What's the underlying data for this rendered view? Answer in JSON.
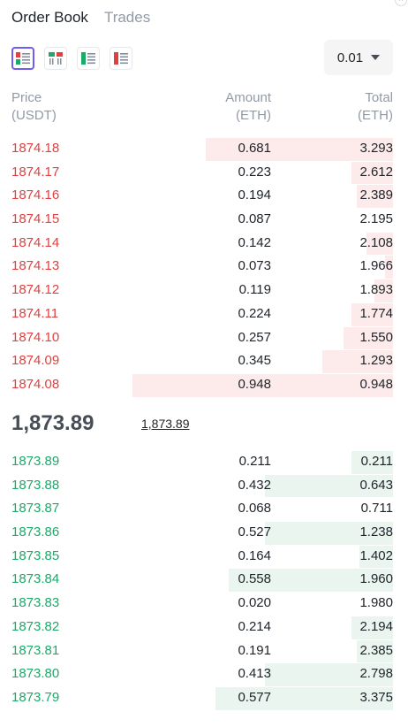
{
  "tabs": {
    "order_book": "Order Book",
    "trades": "Trades"
  },
  "precision": {
    "value": "0.01"
  },
  "headers": {
    "price": "Price",
    "price_unit": "(USDT)",
    "amount": "Amount",
    "amount_unit": "(ETH)",
    "total": "Total",
    "total_unit": "(ETH)"
  },
  "colors": {
    "ask": "#e0403f",
    "bid": "#1da968",
    "ask_depth": "#fdebeb",
    "bid_depth": "#ebf5ef",
    "accent": "#6f5cf0"
  },
  "asks": [
    {
      "price": "1874.18",
      "amount": "0.681",
      "total": "3.293",
      "depth": 0.72
    },
    {
      "price": "1874.17",
      "amount": "0.223",
      "total": "2.612",
      "depth": 0.16
    },
    {
      "price": "1874.16",
      "amount": "0.194",
      "total": "2.389",
      "depth": 0.14
    },
    {
      "price": "1874.15",
      "amount": "0.087",
      "total": "2.195",
      "depth": 0
    },
    {
      "price": "1874.14",
      "amount": "0.142",
      "total": "2.108",
      "depth": 0.1
    },
    {
      "price": "1874.13",
      "amount": "0.073",
      "total": "1.966",
      "depth": 0.03
    },
    {
      "price": "1874.12",
      "amount": "0.119",
      "total": "1.893",
      "depth": 0.07
    },
    {
      "price": "1874.11",
      "amount": "0.224",
      "total": "1.774",
      "depth": 0.16
    },
    {
      "price": "1874.10",
      "amount": "0.257",
      "total": "1.550",
      "depth": 0.19
    },
    {
      "price": "1874.09",
      "amount": "0.345",
      "total": "1.293",
      "depth": 0.27
    },
    {
      "price": "1874.08",
      "amount": "0.948",
      "total": "0.948",
      "depth": 1.0
    }
  ],
  "mid": {
    "last_price": "1,873.89",
    "mark_price": "1,873.89"
  },
  "bids": [
    {
      "price": "1873.89",
      "amount": "0.211",
      "total": "0.211",
      "depth": 0.16
    },
    {
      "price": "1873.88",
      "amount": "0.432",
      "total": "0.643",
      "depth": 0.49
    },
    {
      "price": "1873.87",
      "amount": "0.068",
      "total": "0.711",
      "depth": 0
    },
    {
      "price": "1873.86",
      "amount": "0.527",
      "total": "1.238",
      "depth": 0.49
    },
    {
      "price": "1873.85",
      "amount": "0.164",
      "total": "1.402",
      "depth": 0.13
    },
    {
      "price": "1873.84",
      "amount": "0.558",
      "total": "1.960",
      "depth": 0.63
    },
    {
      "price": "1873.83",
      "amount": "0.020",
      "total": "1.980",
      "depth": 0
    },
    {
      "price": "1873.82",
      "amount": "0.214",
      "total": "2.194",
      "depth": 0.16
    },
    {
      "price": "1873.81",
      "amount": "0.191",
      "total": "2.385",
      "depth": 0.14
    },
    {
      "price": "1873.80",
      "amount": "0.413",
      "total": "2.798",
      "depth": 0.49
    },
    {
      "price": "1873.79",
      "amount": "0.577",
      "total": "3.375",
      "depth": 0.68
    }
  ]
}
